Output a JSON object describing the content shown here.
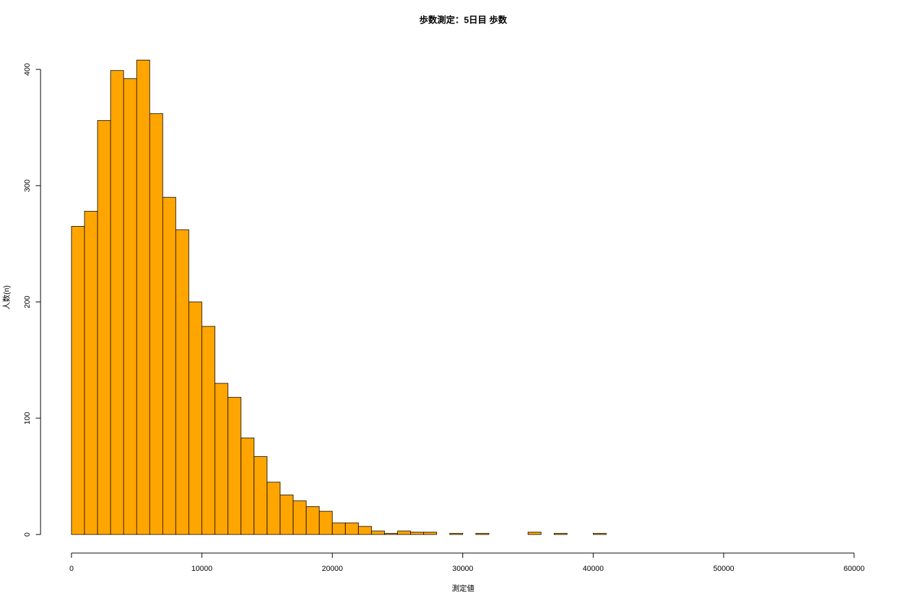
{
  "chart_data": {
    "type": "histogram",
    "title": "歩数測定：5日目 歩数",
    "x_label": "測定値",
    "y_label": "人数(n)",
    "bins": [
      0,
      1000,
      2000,
      3000,
      4000,
      5000,
      6000,
      7000,
      8000,
      9000,
      10000,
      11000,
      12000,
      13000,
      14000,
      15000,
      16000,
      17000,
      18000,
      19000,
      20000,
      21000,
      22000,
      23000,
      24000,
      25000,
      26000,
      27000,
      28000,
      29000,
      30000,
      31000,
      32000,
      33000,
      34000,
      35000,
      36000,
      37000,
      38000,
      39000,
      40000,
      41000
    ],
    "values": [
      265,
      278,
      356,
      399,
      392,
      408,
      362,
      290,
      262,
      200,
      179,
      130,
      118,
      83,
      67,
      45,
      34,
      29,
      24,
      20,
      10,
      10,
      7,
      3,
      1,
      3,
      2,
      2,
      0,
      1,
      0,
      1,
      0,
      0,
      0,
      2,
      0,
      1,
      0,
      0,
      1
    ],
    "color": "#ffa500",
    "xlim": [
      0,
      60000
    ],
    "xticks": [
      0,
      10000,
      20000,
      30000,
      40000,
      50000,
      60000
    ],
    "ylim": [
      0,
      400
    ],
    "yticks": [
      0,
      100,
      200,
      300,
      400
    ]
  }
}
